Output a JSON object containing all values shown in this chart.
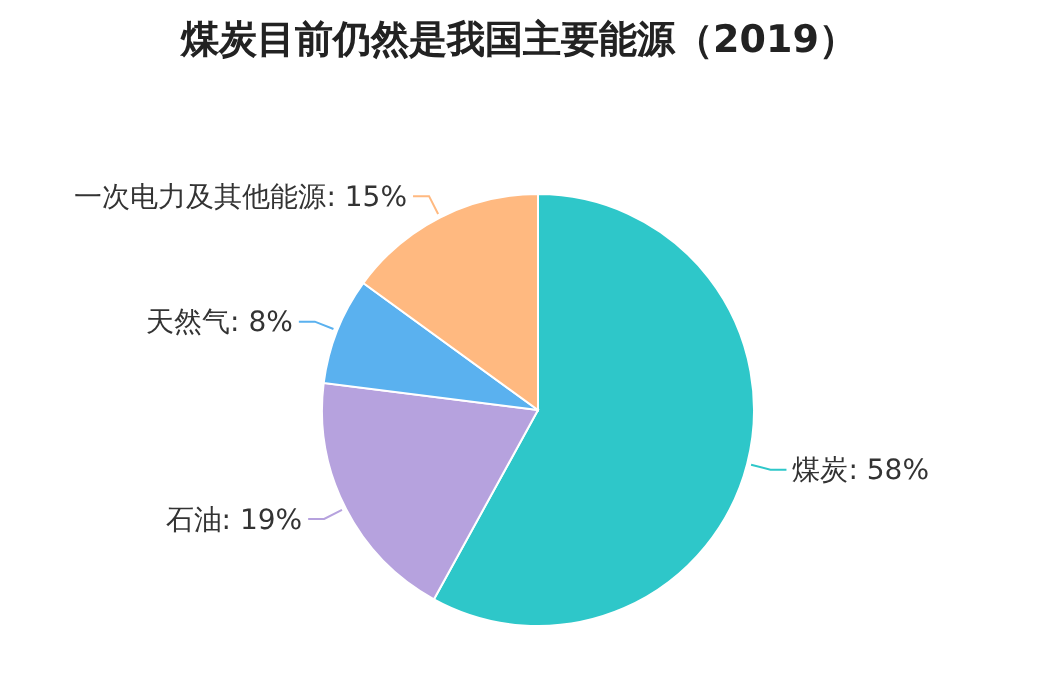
{
  "chart_data": {
    "type": "pie",
    "title": "煤炭目前仍然是我国主要能源（2019）",
    "categories": [
      "煤炭",
      "石油",
      "天然气",
      "一次电力及其他能源"
    ],
    "values": [
      58,
      19,
      8,
      15
    ],
    "value_labels": [
      "58%",
      "19%",
      "8%",
      "15%"
    ],
    "colors": [
      "#2ec7c9",
      "#b6a2de",
      "#5ab1ef",
      "#ffb980"
    ]
  }
}
